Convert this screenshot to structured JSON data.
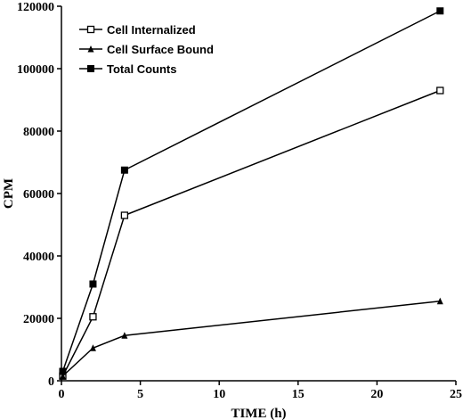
{
  "chart_data": {
    "type": "line",
    "xlabel": "TIME (h)",
    "ylabel": "CPM",
    "xlim": [
      0,
      25
    ],
    "ylim": [
      0,
      120000
    ],
    "xticks": [
      0,
      5,
      10,
      15,
      20,
      25
    ],
    "yticks": [
      0,
      20000,
      40000,
      60000,
      80000,
      100000,
      120000
    ],
    "xtick_labels": [
      "0",
      "5",
      "10",
      "15",
      "20",
      "25"
    ],
    "ytick_labels": [
      "0",
      "20000",
      "40000",
      "60000",
      "80000",
      "100000",
      "120000"
    ],
    "grid": false,
    "legend_position": "top-left",
    "x": [
      0.083,
      2,
      4,
      24
    ],
    "series": [
      {
        "name": "Cell Internalized",
        "marker": "open-square",
        "color": "#000000",
        "values": [
          1500,
          20500,
          53000,
          93000
        ]
      },
      {
        "name": "Cell Surface Bound",
        "marker": "filled-triangle",
        "color": "#000000",
        "values": [
          1500,
          10500,
          14500,
          25500
        ]
      },
      {
        "name": "Total Counts",
        "marker": "filled-square",
        "color": "#000000",
        "values": [
          3000,
          31000,
          67500,
          118500
        ]
      }
    ]
  }
}
